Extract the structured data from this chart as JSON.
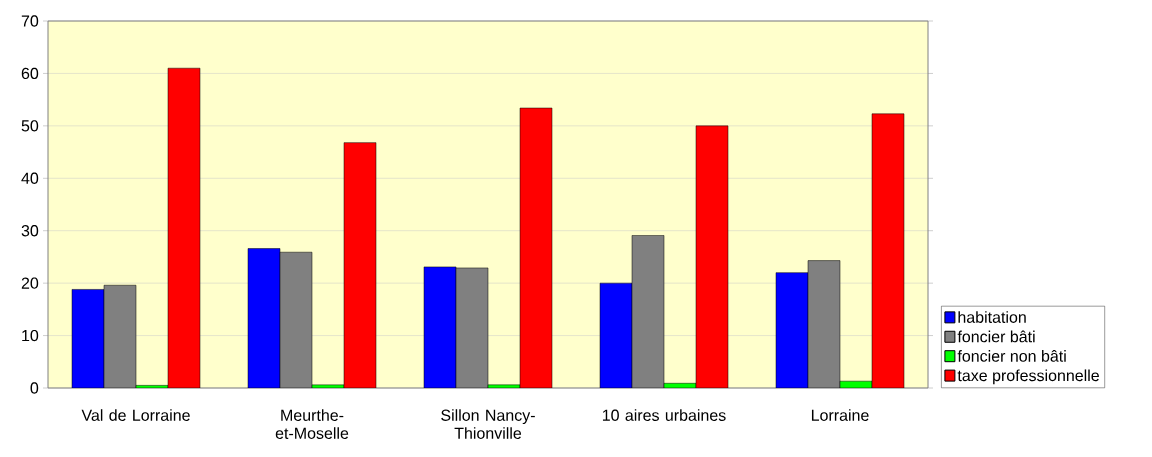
{
  "chart_data": {
    "type": "bar",
    "categories": [
      "Val de Lorraine",
      "Meurthe-et-Moselle",
      "Sillon Nancy-Thionville",
      "10 aires urbaines",
      "Lorraine"
    ],
    "series": [
      {
        "name": "habitation",
        "color": "#0000ff",
        "values": [
          18.8,
          26.6,
          23.1,
          20.0,
          22.0
        ]
      },
      {
        "name": "foncier bâti",
        "color": "#808080",
        "values": [
          19.6,
          25.9,
          22.9,
          29.1,
          24.3
        ]
      },
      {
        "name": "foncier non bâti",
        "color": "#00ff00",
        "values": [
          0.5,
          0.6,
          0.6,
          0.9,
          1.3
        ]
      },
      {
        "name": "taxe professionnelle",
        "color": "#ff0000",
        "values": [
          61.0,
          46.8,
          53.4,
          50.0,
          52.3
        ]
      }
    ],
    "ylim": [
      0,
      70
    ],
    "yticks": [
      0,
      10,
      20,
      30,
      40,
      50,
      60,
      70
    ],
    "grid": "y",
    "legend": "right"
  }
}
